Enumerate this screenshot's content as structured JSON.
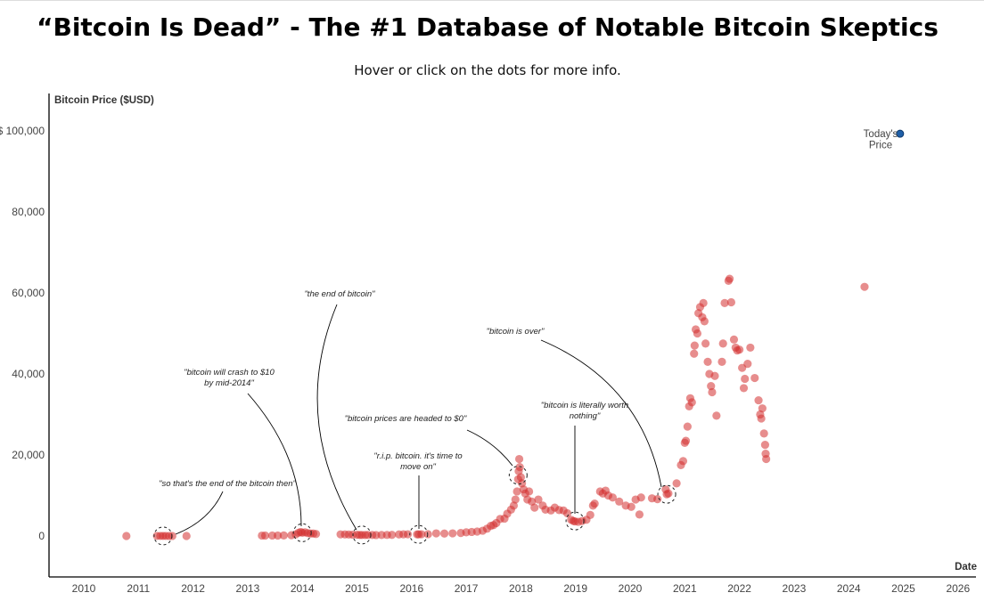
{
  "header": {
    "title": "“Bitcoin Is Dead” - The #1 Database of Notable Bitcoin Skeptics",
    "subtitle": "Hover or click on the dots for more info."
  },
  "chart_data": {
    "type": "scatter",
    "xlabel": "Date",
    "ylabel": "Bitcoin Price ($USD)",
    "xlim": [
      2009.36,
      2026.35
    ],
    "ylim": [
      -10000,
      109000
    ],
    "x_ticks": [
      "2010",
      "2011",
      "2012",
      "2013",
      "2014",
      "2015",
      "2016",
      "2017",
      "2018",
      "2019",
      "2020",
      "2021",
      "2022",
      "2023",
      "2024",
      "2025",
      "2026"
    ],
    "y_ticks": [
      {
        "value": 0,
        "label": "0"
      },
      {
        "value": 20000,
        "label": "20,000"
      },
      {
        "value": 40000,
        "label": "40,000"
      },
      {
        "value": 60000,
        "label": "60,000"
      },
      {
        "value": 80000,
        "label": "80,000"
      },
      {
        "value": 100000,
        "label": "$ 100,000"
      }
    ],
    "grid": false,
    "colors": {
      "dot": "#d32f2f",
      "today": "#1f5fa8",
      "line": "#000000"
    },
    "points": [
      [
        2010.78,
        0
      ],
      [
        2011.34,
        15
      ],
      [
        2011.4,
        15
      ],
      [
        2011.45,
        15
      ],
      [
        2011.5,
        15
      ],
      [
        2011.56,
        12
      ],
      [
        2011.62,
        10
      ],
      [
        2011.88,
        3
      ],
      [
        2013.26,
        100
      ],
      [
        2013.32,
        110
      ],
      [
        2013.45,
        120
      ],
      [
        2013.55,
        110
      ],
      [
        2013.66,
        130
      ],
      [
        2013.8,
        200
      ],
      [
        2013.88,
        400
      ],
      [
        2013.93,
        800
      ],
      [
        2013.97,
        1000
      ],
      [
        2014.0,
        800
      ],
      [
        2014.05,
        900
      ],
      [
        2014.1,
        700
      ],
      [
        2014.15,
        600
      ],
      [
        2014.2,
        600
      ],
      [
        2014.25,
        500
      ],
      [
        2014.7,
        400
      ],
      [
        2014.78,
        380
      ],
      [
        2014.85,
        350
      ],
      [
        2014.92,
        320
      ],
      [
        2015.0,
        300
      ],
      [
        2015.05,
        250
      ],
      [
        2015.09,
        250
      ],
      [
        2015.15,
        240
      ],
      [
        2015.2,
        260
      ],
      [
        2015.28,
        240
      ],
      [
        2015.35,
        230
      ],
      [
        2015.45,
        250
      ],
      [
        2015.55,
        260
      ],
      [
        2015.64,
        280
      ],
      [
        2015.77,
        380
      ],
      [
        2015.85,
        420
      ],
      [
        2015.93,
        430
      ],
      [
        2016.1,
        400
      ],
      [
        2016.13,
        420
      ],
      [
        2016.18,
        430
      ],
      [
        2016.3,
        450
      ],
      [
        2016.45,
        650
      ],
      [
        2016.6,
        600
      ],
      [
        2016.75,
        650
      ],
      [
        2016.9,
        750
      ],
      [
        2017.0,
        900
      ],
      [
        2017.1,
        1000
      ],
      [
        2017.2,
        1100
      ],
      [
        2017.3,
        1300
      ],
      [
        2017.38,
        1800
      ],
      [
        2017.45,
        2500
      ],
      [
        2017.5,
        2700
      ],
      [
        2017.55,
        3200
      ],
      [
        2017.62,
        4200
      ],
      [
        2017.7,
        4300
      ],
      [
        2017.75,
        5500
      ],
      [
        2017.82,
        6500
      ],
      [
        2017.87,
        7500
      ],
      [
        2017.9,
        9000
      ],
      [
        2017.93,
        11000
      ],
      [
        2017.95,
        14000
      ],
      [
        2017.96,
        16000
      ],
      [
        2017.97,
        19000
      ],
      [
        2017.98,
        17000
      ],
      [
        2018.0,
        14500
      ],
      [
        2018.02,
        13000
      ],
      [
        2018.05,
        11500
      ],
      [
        2018.08,
        10500
      ],
      [
        2018.12,
        9000
      ],
      [
        2018.15,
        11000
      ],
      [
        2018.2,
        8500
      ],
      [
        2018.25,
        7000
      ],
      [
        2018.32,
        9000
      ],
      [
        2018.4,
        7500
      ],
      [
        2018.45,
        6500
      ],
      [
        2018.55,
        6300
      ],
      [
        2018.62,
        7000
      ],
      [
        2018.7,
        6400
      ],
      [
        2018.78,
        6300
      ],
      [
        2018.85,
        5600
      ],
      [
        2018.92,
        4000
      ],
      [
        2018.96,
        3700
      ],
      [
        2018.99,
        3600
      ],
      [
        2019.05,
        3500
      ],
      [
        2019.12,
        3700
      ],
      [
        2019.2,
        4000
      ],
      [
        2019.27,
        5200
      ],
      [
        2019.32,
        7500
      ],
      [
        2019.35,
        8000
      ],
      [
        2019.45,
        11000
      ],
      [
        2019.5,
        10500
      ],
      [
        2019.55,
        11200
      ],
      [
        2019.6,
        10000
      ],
      [
        2019.68,
        9500
      ],
      [
        2019.8,
        8500
      ],
      [
        2019.92,
        7500
      ],
      [
        2020.02,
        7200
      ],
      [
        2020.1,
        9000
      ],
      [
        2020.17,
        5300
      ],
      [
        2020.2,
        9500
      ],
      [
        2020.4,
        9300
      ],
      [
        2020.5,
        9100
      ],
      [
        2020.65,
        11500
      ],
      [
        2020.67,
        10300
      ],
      [
        2020.7,
        10500
      ],
      [
        2020.85,
        13000
      ],
      [
        2020.93,
        17500
      ],
      [
        2020.97,
        18500
      ],
      [
        2021.0,
        23000
      ],
      [
        2021.02,
        23500
      ],
      [
        2021.05,
        27000
      ],
      [
        2021.08,
        32000
      ],
      [
        2021.1,
        34000
      ],
      [
        2021.13,
        33000
      ],
      [
        2021.17,
        45000
      ],
      [
        2021.18,
        47000
      ],
      [
        2021.2,
        51000
      ],
      [
        2021.23,
        50000
      ],
      [
        2021.25,
        55000
      ],
      [
        2021.28,
        56500
      ],
      [
        2021.32,
        54000
      ],
      [
        2021.34,
        57500
      ],
      [
        2021.36,
        53000
      ],
      [
        2021.38,
        47500
      ],
      [
        2021.42,
        43000
      ],
      [
        2021.45,
        40000
      ],
      [
        2021.48,
        37000
      ],
      [
        2021.5,
        35500
      ],
      [
        2021.55,
        39500
      ],
      [
        2021.58,
        29700
      ],
      [
        2021.68,
        43000
      ],
      [
        2021.7,
        47500
      ],
      [
        2021.73,
        57500
      ],
      [
        2021.8,
        63000
      ],
      [
        2021.82,
        63500
      ],
      [
        2021.85,
        57700
      ],
      [
        2021.9,
        48500
      ],
      [
        2021.93,
        46500
      ],
      [
        2021.96,
        45800
      ],
      [
        2022.0,
        46000
      ],
      [
        2022.05,
        41500
      ],
      [
        2022.08,
        36500
      ],
      [
        2022.1,
        38800
      ],
      [
        2022.15,
        42500
      ],
      [
        2022.2,
        46500
      ],
      [
        2022.28,
        39000
      ],
      [
        2022.35,
        33500
      ],
      [
        2022.38,
        30000
      ],
      [
        2022.4,
        29000
      ],
      [
        2022.42,
        31500
      ],
      [
        2022.45,
        25300
      ],
      [
        2022.47,
        22500
      ],
      [
        2022.48,
        20300
      ],
      [
        2022.49,
        19000
      ],
      [
        2024.29,
        61500
      ]
    ],
    "today_point": {
      "x": 2024.94,
      "y": 99300,
      "label": [
        "Today's",
        "Price"
      ]
    },
    "annotations": [
      {
        "text": [
          "\"so that's the end of the bitcoin then\""
        ],
        "x": 2011.45,
        "y": 15
      },
      {
        "text": [
          "\"bitcoin will crash to $10",
          "by mid-2014\""
        ],
        "x": 2014.0,
        "y": 800
      },
      {
        "text": [
          "\"the end of bitcoin\""
        ],
        "x": 2015.09,
        "y": 250
      },
      {
        "text": [
          "\"bitcoin prices are headed to $0\""
        ],
        "x": 2017.95,
        "y": 15000
      },
      {
        "text": [
          "\"r.i.p. bitcoin. it's time to",
          "move on\""
        ],
        "x": 2016.13,
        "y": 400
      },
      {
        "text": [
          "\"bitcoin is over\""
        ],
        "x": 2020.67,
        "y": 10300
      },
      {
        "text": [
          "\"bitcoin is literally worth",
          "nothing\""
        ],
        "x": 2018.99,
        "y": 3700
      }
    ]
  }
}
